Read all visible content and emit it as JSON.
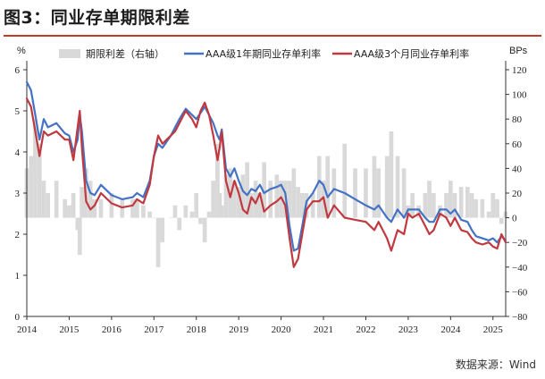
{
  "figure": {
    "title": "图3：同业存单期限利差",
    "source": "数据来源：Wind"
  },
  "colors": {
    "spread_bar": "#d9d9d9",
    "aaa_1y": "#4472c4",
    "aaa_3m": "#c0393f",
    "title_rule": "#c0392b"
  },
  "chart_data": {
    "type": "line",
    "left_axis": {
      "unit": "%",
      "ylim": [
        0,
        6
      ],
      "ticks": [
        "0",
        "1",
        "2",
        "3",
        "4",
        "5",
        "6"
      ]
    },
    "right_axis": {
      "unit": "BPs",
      "ylim": [
        -80,
        120
      ],
      "ticks": [
        "−80",
        "−60",
        "−40",
        "−20",
        "0",
        "20",
        "40",
        "60",
        "80",
        "100",
        "120"
      ]
    },
    "x_axis": {
      "xlim": [
        2014.0,
        2025.3
      ],
      "ticks": [
        "2014",
        "2015",
        "2016",
        "2017",
        "2018",
        "2019",
        "2020",
        "2021",
        "2022",
        "2023",
        "2024",
        "2025"
      ]
    },
    "legend": [
      "期限利差（右轴）",
      "AAA级1年期同业存单利率",
      "AAA级3个月同业存单利率"
    ],
    "series": [
      {
        "name": "AAA级1年期同业存单利率",
        "axis": "left",
        "x": [
          2014.0,
          2014.1,
          2014.2,
          2014.3,
          2014.4,
          2014.5,
          2014.7,
          2014.9,
          2015.0,
          2015.1,
          2015.2,
          2015.25,
          2015.3,
          2015.4,
          2015.5,
          2015.6,
          2015.75,
          2016.0,
          2016.25,
          2016.5,
          2016.6,
          2016.75,
          2016.9,
          2017.0,
          2017.1,
          2017.2,
          2017.4,
          2017.5,
          2017.6,
          2017.75,
          2017.9,
          2018.0,
          2018.1,
          2018.2,
          2018.3,
          2018.4,
          2018.5,
          2018.55,
          2018.6,
          2018.7,
          2018.8,
          2018.9,
          2019.0,
          2019.1,
          2019.2,
          2019.3,
          2019.4,
          2019.5,
          2019.6,
          2019.75,
          2019.9,
          2020.0,
          2020.1,
          2020.2,
          2020.3,
          2020.4,
          2020.5,
          2020.6,
          2020.75,
          2020.9,
          2021.0,
          2021.1,
          2021.25,
          2021.5,
          2021.75,
          2022.0,
          2022.2,
          2022.3,
          2022.5,
          2022.6,
          2022.75,
          2022.9,
          2023.0,
          2023.1,
          2023.25,
          2023.4,
          2023.5,
          2023.6,
          2023.75,
          2023.9,
          2024.0,
          2024.1,
          2024.25,
          2024.4,
          2024.5,
          2024.6,
          2024.75,
          2024.9,
          2025.0,
          2025.1,
          2025.2,
          2025.3
        ],
        "values": [
          5.7,
          5.5,
          4.9,
          4.3,
          4.8,
          4.6,
          4.7,
          4.45,
          4.4,
          4.0,
          4.3,
          4.9,
          4.5,
          3.3,
          3.0,
          2.95,
          3.2,
          2.95,
          2.85,
          2.9,
          3.0,
          2.9,
          3.3,
          3.9,
          4.2,
          4.1,
          4.4,
          4.6,
          4.8,
          5.05,
          4.9,
          4.8,
          4.95,
          5.1,
          4.9,
          4.7,
          4.4,
          4.3,
          4.55,
          3.6,
          3.4,
          3.6,
          3.3,
          3.05,
          2.95,
          3.1,
          3.05,
          3.2,
          3.0,
          3.1,
          3.15,
          3.2,
          3.0,
          2.2,
          1.6,
          1.65,
          2.2,
          2.8,
          3.0,
          3.3,
          3.2,
          2.9,
          3.1,
          3.0,
          2.85,
          2.7,
          2.6,
          2.7,
          2.4,
          2.3,
          2.6,
          2.4,
          2.6,
          2.6,
          2.6,
          2.4,
          2.3,
          2.3,
          2.6,
          2.6,
          2.5,
          2.6,
          2.35,
          2.3,
          2.1,
          1.95,
          1.9,
          1.85,
          1.9,
          1.8,
          1.95,
          1.85
        ]
      },
      {
        "name": "AAA级3个月同业存单利率",
        "axis": "left",
        "x": [
          2014.0,
          2014.1,
          2014.2,
          2014.3,
          2014.4,
          2014.5,
          2014.7,
          2014.9,
          2015.0,
          2015.1,
          2015.2,
          2015.25,
          2015.3,
          2015.4,
          2015.5,
          2015.6,
          2015.75,
          2016.0,
          2016.25,
          2016.5,
          2016.6,
          2016.75,
          2016.9,
          2017.0,
          2017.1,
          2017.2,
          2017.4,
          2017.5,
          2017.6,
          2017.75,
          2017.9,
          2018.0,
          2018.1,
          2018.2,
          2018.3,
          2018.4,
          2018.5,
          2018.55,
          2018.6,
          2018.7,
          2018.8,
          2018.9,
          2019.0,
          2019.1,
          2019.2,
          2019.3,
          2019.4,
          2019.5,
          2019.6,
          2019.75,
          2019.9,
          2020.0,
          2020.1,
          2020.2,
          2020.3,
          2020.4,
          2020.5,
          2020.6,
          2020.75,
          2020.9,
          2021.0,
          2021.1,
          2021.25,
          2021.5,
          2021.75,
          2022.0,
          2022.2,
          2022.3,
          2022.5,
          2022.6,
          2022.75,
          2022.9,
          2023.0,
          2023.1,
          2023.25,
          2023.4,
          2023.5,
          2023.6,
          2023.75,
          2023.9,
          2024.0,
          2024.1,
          2024.25,
          2024.4,
          2024.5,
          2024.6,
          2024.75,
          2024.9,
          2025.0,
          2025.1,
          2025.2,
          2025.3
        ],
        "values": [
          5.3,
          5.1,
          4.5,
          3.9,
          4.5,
          4.4,
          4.5,
          4.3,
          4.3,
          3.8,
          4.6,
          5.0,
          4.1,
          2.8,
          2.6,
          2.7,
          3.0,
          2.75,
          2.65,
          2.7,
          2.85,
          2.75,
          3.2,
          3.9,
          4.4,
          4.2,
          4.4,
          4.5,
          4.7,
          5.0,
          4.8,
          4.6,
          5.0,
          5.2,
          4.9,
          4.4,
          3.8,
          4.1,
          4.5,
          3.3,
          2.9,
          3.3,
          3.0,
          2.6,
          2.5,
          2.9,
          2.75,
          3.0,
          2.55,
          2.7,
          2.8,
          2.9,
          2.7,
          1.9,
          1.2,
          1.4,
          2.0,
          2.6,
          2.8,
          2.8,
          2.9,
          2.4,
          2.7,
          2.4,
          2.35,
          2.3,
          2.1,
          2.3,
          1.9,
          1.6,
          2.1,
          2.0,
          2.5,
          2.4,
          2.5,
          2.2,
          2.0,
          2.1,
          2.5,
          2.4,
          2.2,
          2.4,
          2.1,
          2.05,
          1.9,
          1.8,
          1.75,
          1.8,
          1.7,
          1.65,
          2.0,
          1.8
        ]
      },
      {
        "name": "期限利差（右轴）",
        "axis": "right",
        "style": "bar",
        "x": [
          2014.0,
          2014.1,
          2014.2,
          2014.3,
          2014.4,
          2014.5,
          2014.7,
          2014.9,
          2015.0,
          2015.1,
          2015.2,
          2015.25,
          2015.3,
          2015.4,
          2015.5,
          2015.6,
          2015.75,
          2016.0,
          2016.25,
          2016.5,
          2016.6,
          2016.75,
          2016.9,
          2017.0,
          2017.1,
          2017.2,
          2017.4,
          2017.5,
          2017.6,
          2017.75,
          2017.9,
          2018.0,
          2018.1,
          2018.2,
          2018.3,
          2018.4,
          2018.5,
          2018.55,
          2018.6,
          2018.7,
          2018.8,
          2018.9,
          2019.0,
          2019.1,
          2019.2,
          2019.3,
          2019.4,
          2019.5,
          2019.6,
          2019.75,
          2019.9,
          2020.0,
          2020.1,
          2020.2,
          2020.3,
          2020.4,
          2020.5,
          2020.6,
          2020.75,
          2020.9,
          2021.0,
          2021.1,
          2021.25,
          2021.5,
          2021.75,
          2022.0,
          2022.2,
          2022.3,
          2022.5,
          2022.6,
          2022.75,
          2022.9,
          2023.0,
          2023.1,
          2023.25,
          2023.4,
          2023.5,
          2023.6,
          2023.75,
          2023.9,
          2024.0,
          2024.1,
          2024.25,
          2024.4,
          2024.5,
          2024.6,
          2024.75,
          2024.9,
          2025.0,
          2025.1,
          2025.2,
          2025.3
        ],
        "values": [
          40,
          50,
          80,
          60,
          30,
          20,
          30,
          15,
          10,
          20,
          -10,
          -30,
          25,
          40,
          30,
          15,
          15,
          20,
          15,
          15,
          15,
          10,
          5,
          0,
          -40,
          -20,
          0,
          10,
          -10,
          10,
          5,
          20,
          -5,
          -20,
          5,
          30,
          60,
          20,
          10,
          35,
          40,
          30,
          25,
          35,
          45,
          20,
          30,
          20,
          45,
          30,
          35,
          30,
          30,
          30,
          40,
          25,
          20,
          20,
          20,
          50,
          30,
          50,
          40,
          60,
          40,
          40,
          50,
          40,
          50,
          70,
          50,
          40,
          10,
          20,
          10,
          20,
          30,
          20,
          10,
          20,
          30,
          20,
          25,
          25,
          20,
          15,
          15,
          5,
          20,
          15,
          -5,
          5
        ]
      }
    ]
  }
}
